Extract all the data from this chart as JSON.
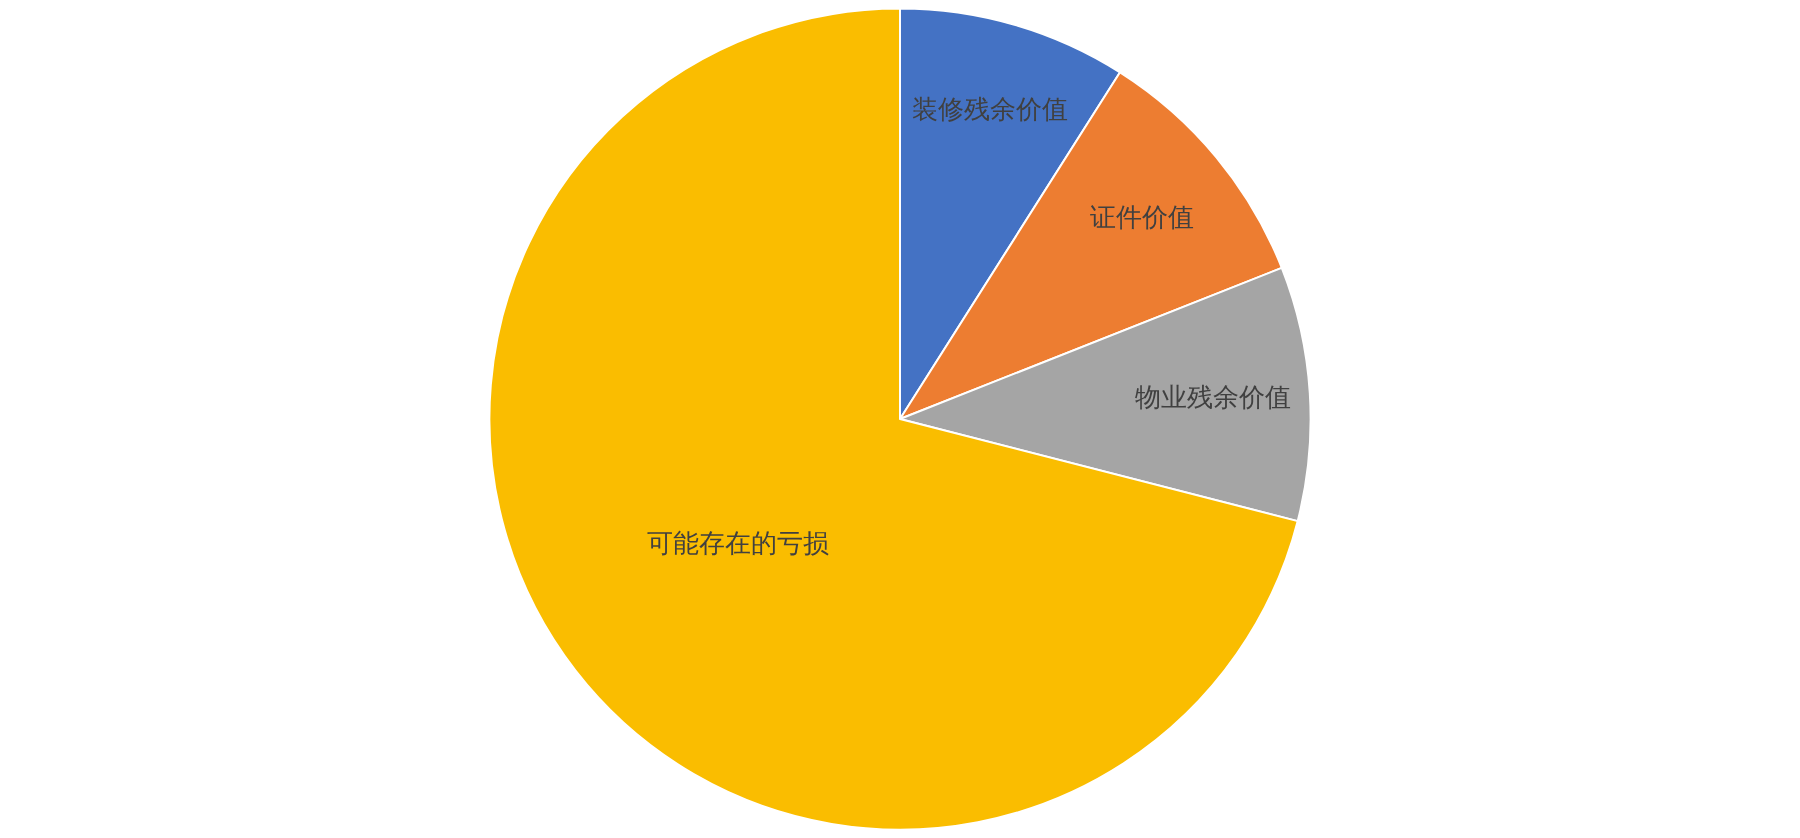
{
  "chart_data": {
    "type": "pie",
    "categories": [
      "装修残余价值",
      "证件价值",
      "物业残余价值",
      "可能存在的亏损"
    ],
    "values": [
      9,
      10,
      10,
      71
    ],
    "colors": [
      "#4472c4",
      "#ed7d31",
      "#a5a5a5",
      "#fabd00"
    ]
  }
}
